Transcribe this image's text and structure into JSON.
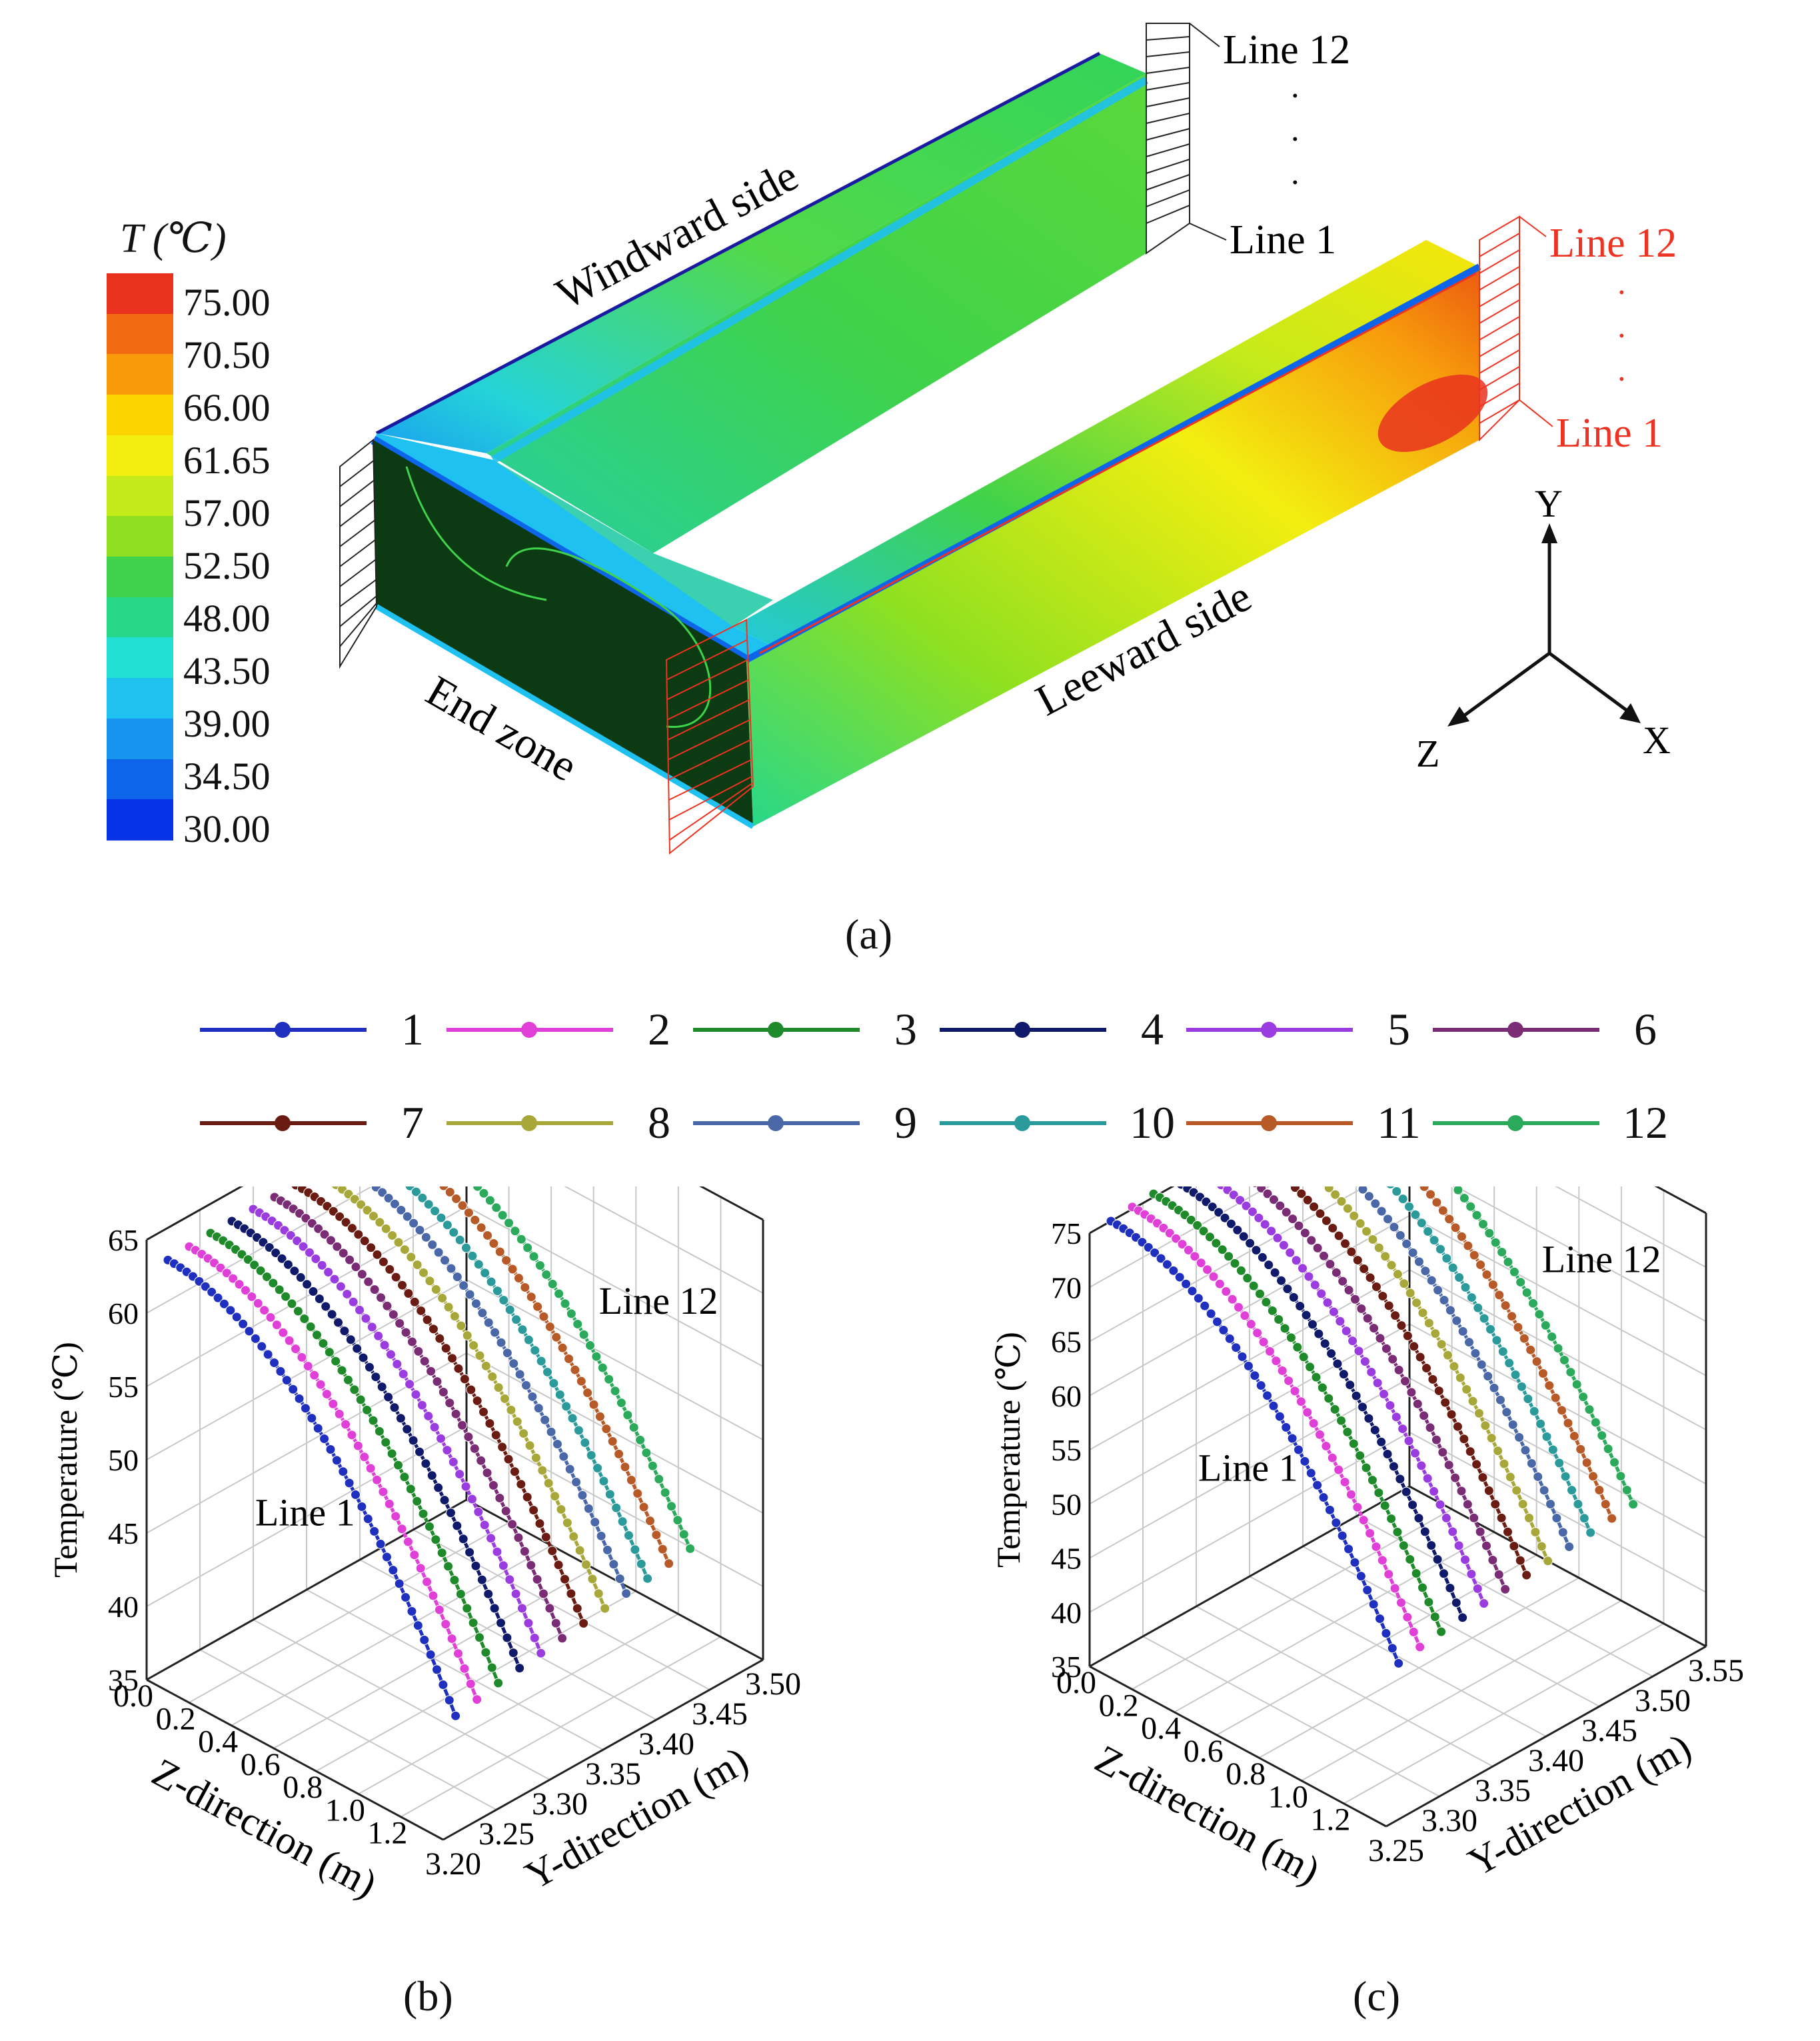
{
  "colorbar": {
    "title": "T (℃)",
    "ticks": [
      "75.00",
      "70.50",
      "66.00",
      "61.65",
      "57.00",
      "52.50",
      "48.00",
      "43.50",
      "39.00",
      "34.50",
      "30.00"
    ],
    "colors": [
      "#e8321e",
      "#f26a12",
      "#f79a0c",
      "#fdd300",
      "#f3ee10",
      "#c5ea1a",
      "#8fe020",
      "#3fd24a",
      "#26d78a",
      "#1fe0d2",
      "#1ec1f0",
      "#1694ee",
      "#0d66ea",
      "#0533e5"
    ]
  },
  "diagram": {
    "windward_label": "Windward side",
    "leeward_label": "Leeward side",
    "end_zone_label": "End zone",
    "windward_line_top": "Line 12",
    "windward_line_bottom": "Line 1",
    "leeward_line_top": "Line 12",
    "leeward_line_bottom": "Line 1",
    "axis_y": "Y",
    "axis_z": "Z",
    "axis_x": "X",
    "leeward_line_color": "#ee3322"
  },
  "captions": {
    "a": "(a)",
    "b": "(b)",
    "c": "(c)"
  },
  "legend": [
    {
      "label": "1",
      "color": "#1f2fbf"
    },
    {
      "label": "2",
      "color": "#e040d8"
    },
    {
      "label": "3",
      "color": "#1e8a2a"
    },
    {
      "label": "4",
      "color": "#101a6a"
    },
    {
      "label": "5",
      "color": "#9a3ce0"
    },
    {
      "label": "6",
      "color": "#7a2c74"
    },
    {
      "label": "7",
      "color": "#6a1c12"
    },
    {
      "label": "8",
      "color": "#a8a83a"
    },
    {
      "label": "9",
      "color": "#4a68a8"
    },
    {
      "label": "10",
      "color": "#2a9a9a"
    },
    {
      "label": "11",
      "color": "#b85a28"
    },
    {
      "label": "12",
      "color": "#2aaa5a"
    }
  ],
  "chart_data": [
    {
      "type": "line",
      "panel": "b",
      "xlabel": "Z-direction (m)",
      "ylabel": "Y-direction (m)",
      "zlabel": "Temperature (℃)",
      "z_ticks": [
        "0.0",
        "0.2",
        "0.4",
        "0.6",
        "0.8",
        "1.0",
        "1.2"
      ],
      "y_ticks": [
        "3.20",
        "3.25",
        "3.30",
        "3.35",
        "3.40",
        "3.45",
        "3.50"
      ],
      "t_ticks": [
        "35",
        "40",
        "45",
        "50",
        "55",
        "60",
        "65"
      ],
      "zlim": [
        0.0,
        1.3
      ],
      "ylim": [
        3.2,
        3.5
      ],
      "tlim": [
        35,
        65
      ],
      "annotations": [
        "Line 1",
        "Line 12"
      ],
      "series": [
        {
          "name": "1",
          "y": 3.22,
          "t_start": 62.8,
          "t_end": 42.3
        },
        {
          "name": "2",
          "y": 3.24,
          "t_start": 62.9,
          "t_end": 42.6
        },
        {
          "name": "3",
          "y": 3.26,
          "t_start": 63.0,
          "t_end": 42.9
        },
        {
          "name": "4",
          "y": 3.28,
          "t_start": 63.0,
          "t_end": 43.1
        },
        {
          "name": "5",
          "y": 3.3,
          "t_start": 63.0,
          "t_end": 43.3
        },
        {
          "name": "6",
          "y": 3.32,
          "t_start": 63.0,
          "t_end": 43.5
        },
        {
          "name": "7",
          "y": 3.34,
          "t_start": 63.0,
          "t_end": 43.7
        },
        {
          "name": "8",
          "y": 3.36,
          "t_start": 63.0,
          "t_end": 43.9
        },
        {
          "name": "9",
          "y": 3.38,
          "t_start": 63.0,
          "t_end": 44.1
        },
        {
          "name": "10",
          "y": 3.4,
          "t_start": 63.0,
          "t_end": 44.3
        },
        {
          "name": "11",
          "y": 3.42,
          "t_start": 63.0,
          "t_end": 44.5
        },
        {
          "name": "12",
          "y": 3.44,
          "t_start": 63.0,
          "t_end": 44.7
        }
      ]
    },
    {
      "type": "line",
      "panel": "c",
      "xlabel": "Z-direction (m)",
      "ylabel": "Y-direction (m)",
      "zlabel": "Temperature (℃)",
      "z_ticks": [
        "0.0",
        "0.2",
        "0.4",
        "0.6",
        "0.8",
        "1.0",
        "1.2"
      ],
      "y_ticks": [
        "3.25",
        "3.30",
        "3.35",
        "3.40",
        "3.45",
        "3.50",
        "3.55"
      ],
      "t_ticks": [
        "35",
        "40",
        "45",
        "50",
        "55",
        "60",
        "65",
        "70",
        "75"
      ],
      "zlim": [
        0.0,
        1.3
      ],
      "ylim": [
        3.25,
        3.55
      ],
      "tlim": [
        35,
        75
      ],
      "annotations": [
        "Line 1",
        "Line 12"
      ],
      "series": [
        {
          "name": "1",
          "y": 3.27,
          "t_start": 75.0,
          "t_end": 48.5
        },
        {
          "name": "2",
          "y": 3.29,
          "t_start": 75.2,
          "t_end": 48.9
        },
        {
          "name": "3",
          "y": 3.31,
          "t_start": 75.3,
          "t_end": 49.2
        },
        {
          "name": "4",
          "y": 3.33,
          "t_start": 75.4,
          "t_end": 49.4
        },
        {
          "name": "5",
          "y": 3.35,
          "t_start": 75.4,
          "t_end": 49.6
        },
        {
          "name": "6",
          "y": 3.37,
          "t_start": 75.4,
          "t_end": 49.8
        },
        {
          "name": "7",
          "y": 3.39,
          "t_start": 75.4,
          "t_end": 50.0
        },
        {
          "name": "8",
          "y": 3.41,
          "t_start": 75.4,
          "t_end": 50.2
        },
        {
          "name": "9",
          "y": 3.43,
          "t_start": 75.4,
          "t_end": 50.4
        },
        {
          "name": "10",
          "y": 3.45,
          "t_start": 75.4,
          "t_end": 50.6
        },
        {
          "name": "11",
          "y": 3.47,
          "t_start": 75.4,
          "t_end": 50.8
        },
        {
          "name": "12",
          "y": 3.49,
          "t_start": 75.4,
          "t_end": 51.0
        }
      ]
    }
  ]
}
